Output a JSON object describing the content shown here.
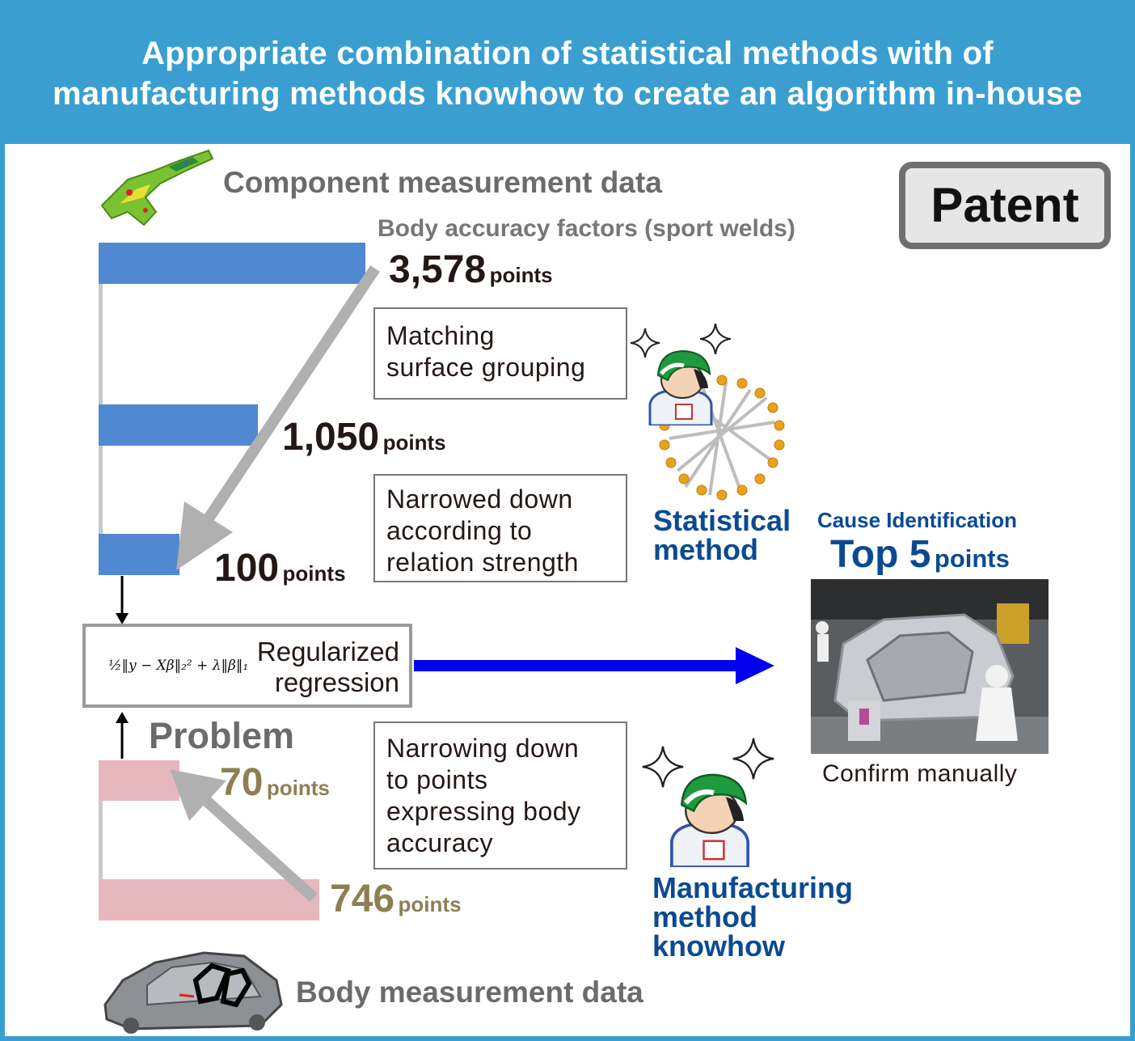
{
  "title": {
    "line1": "Appropriate combination of statistical methods with of",
    "line2": "manufacturing methods knowhow to create an algorithm in-house"
  },
  "component_heading": "Component measurement data",
  "factors_label": "Body accuracy factors (sport welds)",
  "patent": "Patent",
  "points": {
    "p3578": {
      "value": "3,578",
      "unit": "points"
    },
    "p1050": {
      "value": "1,050",
      "unit": "points"
    },
    "p100": {
      "value": "100",
      "unit": "points"
    },
    "p70": {
      "value": "70",
      "unit": "points"
    },
    "p746": {
      "value": "746",
      "unit": "points"
    }
  },
  "boxes": {
    "matching": [
      "Matching",
      "surface grouping"
    ],
    "narrowed": [
      "Narrowed down",
      "according to",
      "relation strength"
    ],
    "narrowing": [
      "Narrowing down",
      "to points",
      "expressing body",
      "accuracy"
    ]
  },
  "regression": {
    "formula": "½‖y − Xβ‖₂² + λ‖β‖₁",
    "label_line1": "Regularized",
    "label_line2": "regression"
  },
  "problem": "Problem",
  "statistical": [
    "Statistical",
    "method"
  ],
  "manufacturing": [
    "Manufacturing",
    "method",
    "knowhow"
  ],
  "cause": {
    "heading": "Cause Identification",
    "top_big": "Top 5",
    "top_unit": "points"
  },
  "confirm": "Confirm manually",
  "body_heading": "Body measurement data",
  "colors": {
    "banner": "#3a9fd0",
    "blue_bar": "#5088d2",
    "pink_bar": "#e6b8bd",
    "arrow_gray": "#b0b0b0",
    "arrow_blue": "#0000ee",
    "label_blue": "#0b4a93",
    "tan_number": "#8e7f52"
  },
  "icons": [
    "sparkle-icon",
    "worker-icon",
    "network-graph-icon",
    "car-body-icon",
    "component-part-icon"
  ]
}
